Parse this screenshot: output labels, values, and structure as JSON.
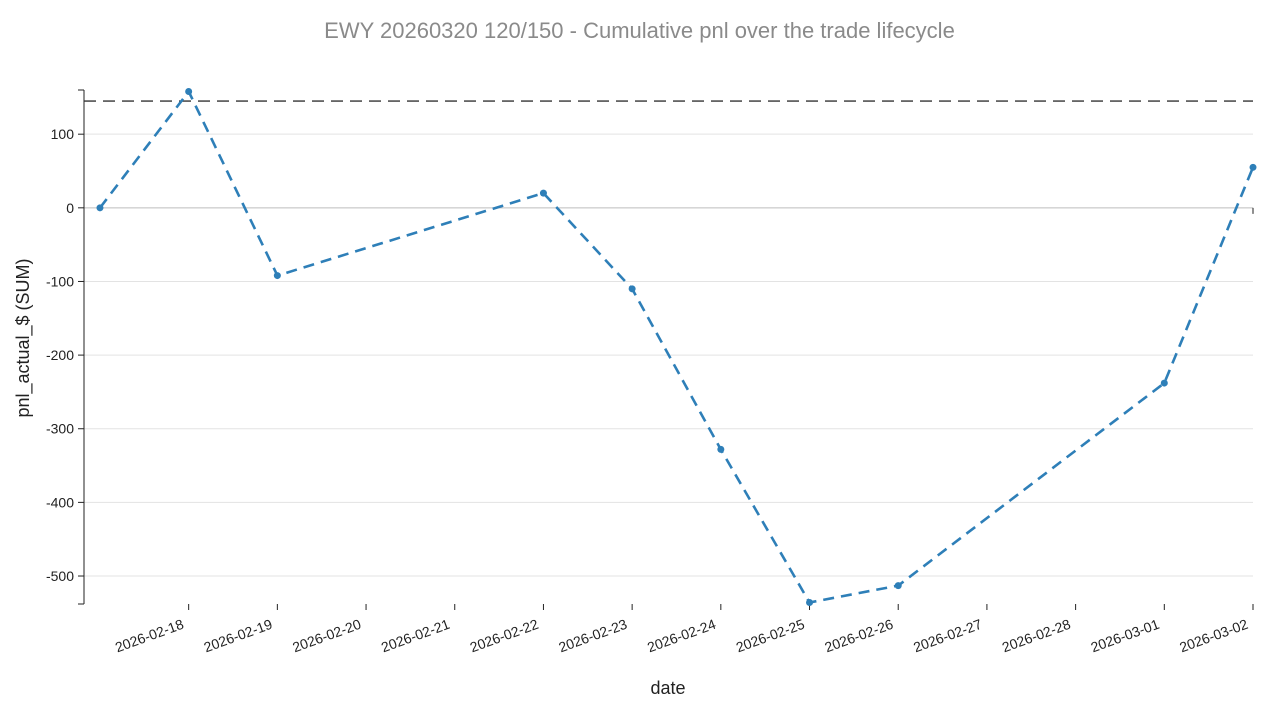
{
  "chart_data": {
    "type": "line",
    "title": "EWY 20260320 120/150 - Cumulative pnl over the trade lifecycle",
    "xlabel": "date",
    "ylabel": "pnl_actual_$ (SUM)",
    "xlim": [
      "2026-02-17",
      "2026-03-02"
    ],
    "ylim": [
      -538,
      160
    ],
    "y_ticks": [
      100,
      0,
      -100,
      -200,
      -300,
      -400,
      -500
    ],
    "x_ticks": [
      "2026-02-18",
      "2026-02-19",
      "2026-02-20",
      "2026-02-21",
      "2026-02-22",
      "2026-02-23",
      "2026-02-24",
      "2026-02-25",
      "2026-02-26",
      "2026-02-27",
      "2026-02-28",
      "2026-03-01",
      "2026-03-02"
    ],
    "grid": true,
    "reference_line": {
      "y": 145,
      "style": "dashed",
      "color": "#333333"
    },
    "series": [
      {
        "color": "#2e7fb8",
        "line_style": "dashed",
        "points": [
          {
            "x": "2026-02-17",
            "y": 0
          },
          {
            "x": "2026-02-18",
            "y": 158
          },
          {
            "x": "2026-02-19",
            "y": -92
          },
          {
            "x": "2026-02-22",
            "y": 20
          },
          {
            "x": "2026-02-23",
            "y": -110
          },
          {
            "x": "2026-02-24",
            "y": -328
          },
          {
            "x": "2026-02-25",
            "y": -536
          },
          {
            "x": "2026-02-26",
            "y": -513
          },
          {
            "x": "2026-03-01",
            "y": -238
          },
          {
            "x": "2026-03-02",
            "y": 55
          }
        ]
      }
    ]
  }
}
